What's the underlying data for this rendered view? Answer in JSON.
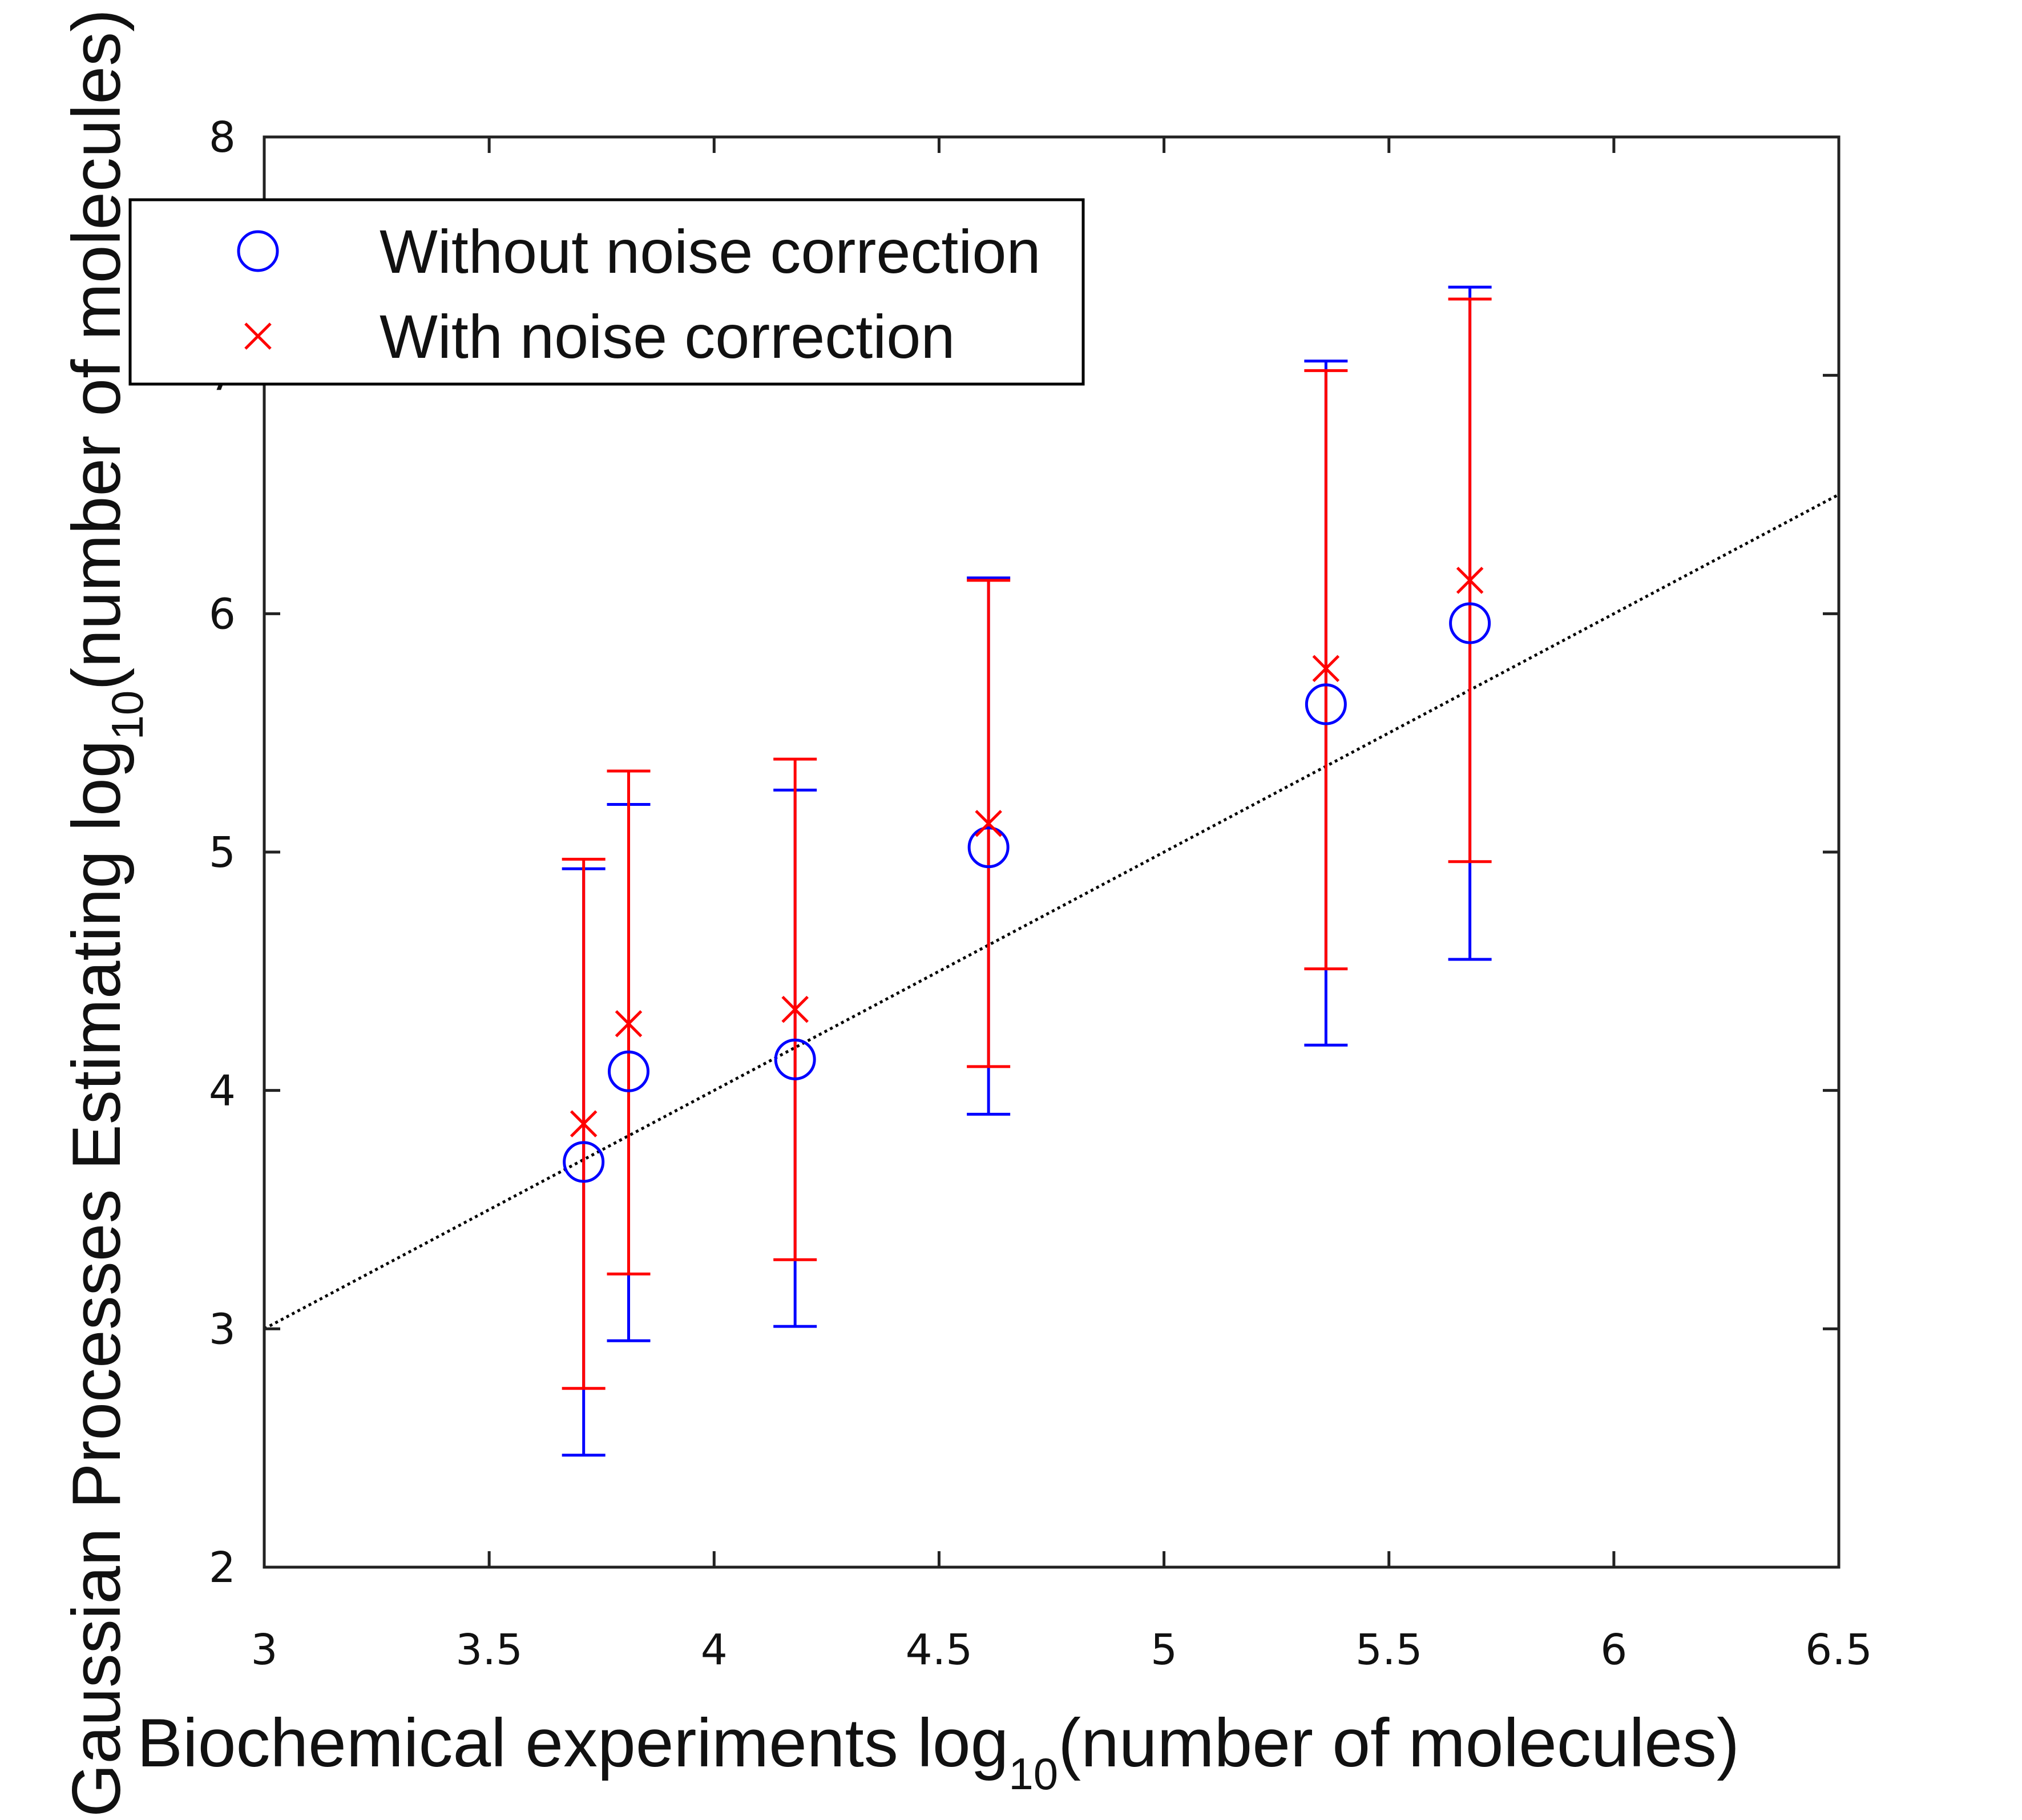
{
  "chart_data": {
    "type": "scatter",
    "xlabel": {
      "main": "Biochemical experiments  log",
      "sub": "10",
      "tail": "(number of molecules)"
    },
    "ylabel": {
      "main": "Gaussian Processes Estimating log",
      "sub": "10",
      "tail": "(number of molecules)"
    },
    "xlim": [
      3,
      6.5
    ],
    "ylim": [
      2,
      8
    ],
    "xticks": [
      "3",
      "3.5",
      "4",
      "4.5",
      "5",
      "5.5",
      "6",
      "6.5"
    ],
    "yticks": [
      "2",
      "3",
      "4",
      "5",
      "6",
      "7",
      "8"
    ],
    "grid": false,
    "legend_position": "top-left",
    "reference_line": {
      "style": "dotted",
      "color": "#000000",
      "x": [
        3,
        6.5
      ],
      "y": [
        3,
        6.5
      ]
    },
    "series": [
      {
        "name": "Without noise correction",
        "marker": "circle",
        "color": "#0000ff",
        "points": [
          {
            "x": 3.71,
            "y": 3.7,
            "low": 2.47,
            "high": 4.93
          },
          {
            "x": 3.81,
            "y": 4.08,
            "low": 2.95,
            "high": 5.2
          },
          {
            "x": 4.18,
            "y": 4.13,
            "low": 3.01,
            "high": 5.26
          },
          {
            "x": 4.61,
            "y": 5.02,
            "low": 3.9,
            "high": 6.15
          },
          {
            "x": 5.36,
            "y": 5.62,
            "low": 4.19,
            "high": 7.06
          },
          {
            "x": 5.68,
            "y": 5.96,
            "low": 4.55,
            "high": 7.37
          }
        ]
      },
      {
        "name": "With noise correction",
        "marker": "x",
        "color": "#ff0000",
        "points": [
          {
            "x": 3.71,
            "y": 3.86,
            "low": 2.75,
            "high": 4.97
          },
          {
            "x": 3.81,
            "y": 4.28,
            "low": 3.23,
            "high": 5.34
          },
          {
            "x": 4.18,
            "y": 4.34,
            "low": 3.29,
            "high": 5.39
          },
          {
            "x": 4.61,
            "y": 5.12,
            "low": 4.1,
            "high": 6.14
          },
          {
            "x": 5.36,
            "y": 5.77,
            "low": 4.51,
            "high": 7.02
          },
          {
            "x": 5.68,
            "y": 6.14,
            "low": 4.96,
            "high": 7.32
          }
        ]
      }
    ]
  }
}
